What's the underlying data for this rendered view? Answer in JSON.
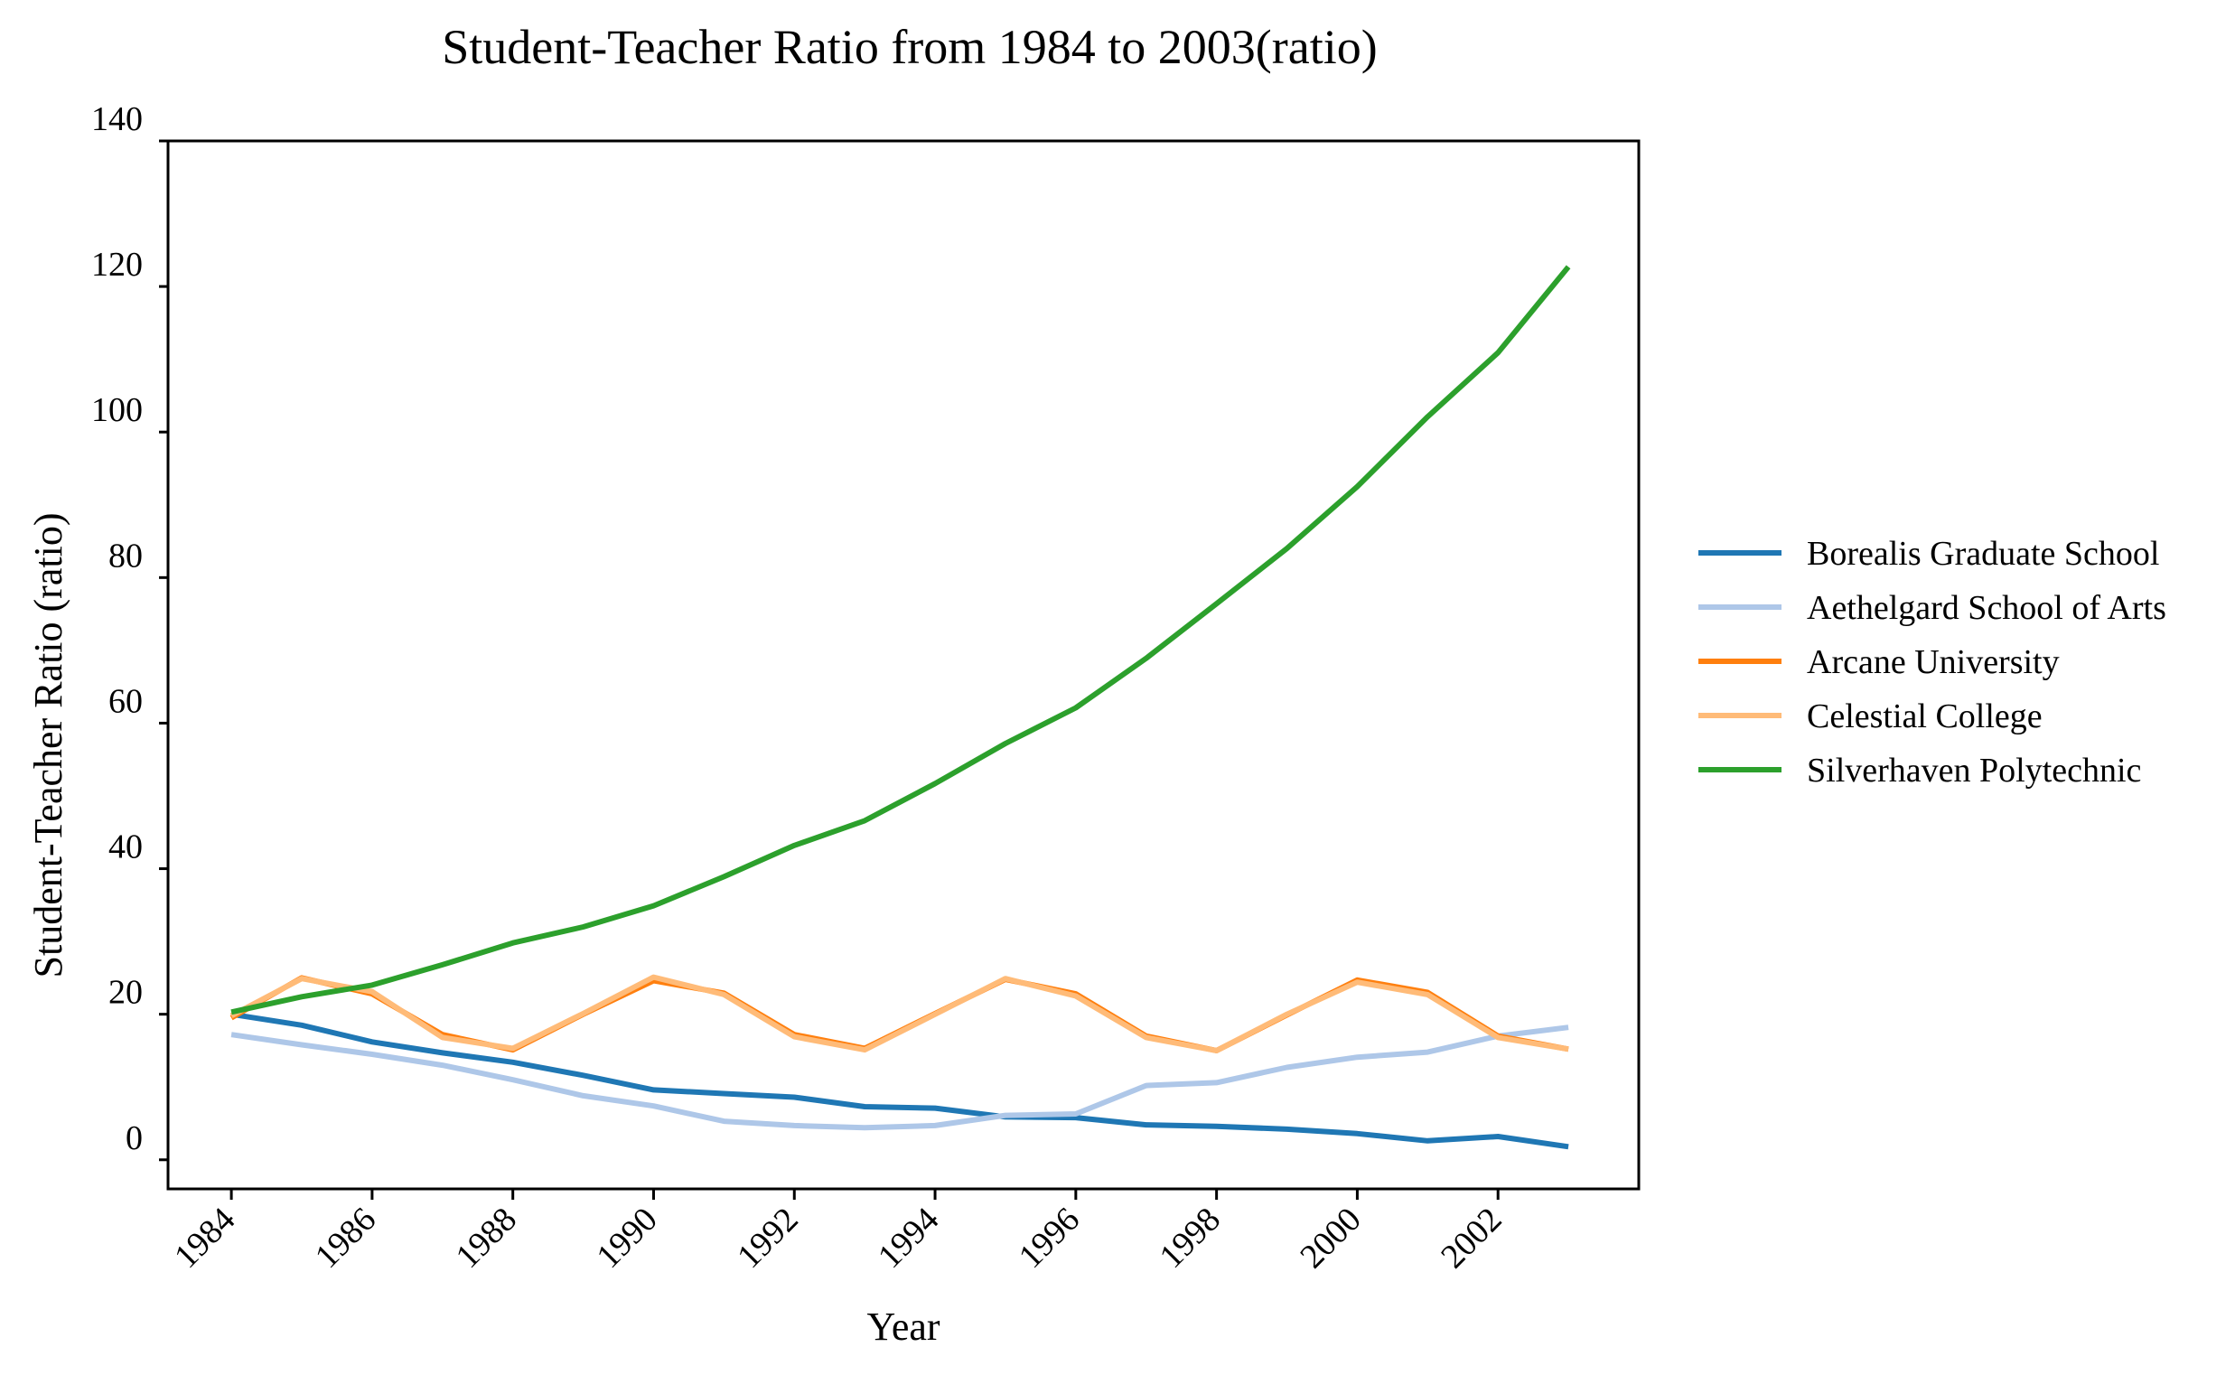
{
  "chart_data": {
    "type": "line",
    "title": "Student-Teacher Ratio from 1984 to 2003(ratio)",
    "xlabel": "Year",
    "ylabel": "Student-Teacher Ratio (ratio)",
    "xlim": [
      1983.1,
      2004.0
    ],
    "ylim": [
      -4,
      140
    ],
    "x": [
      1984,
      1985,
      1986,
      1987,
      1988,
      1989,
      1990,
      1991,
      1992,
      1993,
      1994,
      1995,
      1996,
      1997,
      1998,
      1999,
      2000,
      2001,
      2002,
      2003
    ],
    "x_ticks": [
      "1984",
      "1986",
      "1988",
      "1990",
      "1992",
      "1994",
      "1996",
      "1998",
      "2000",
      "2002"
    ],
    "y_ticks": [
      "0",
      "20",
      "40",
      "60",
      "80",
      "100",
      "120",
      "140"
    ],
    "grid": false,
    "legend_position": "right",
    "series": [
      {
        "name": "Borealis Graduate School",
        "color": "#1f77b4",
        "values": [
          20.0,
          18.5,
          16.2,
          14.7,
          13.4,
          11.6,
          9.6,
          9.1,
          8.6,
          7.3,
          7.1,
          5.9,
          5.8,
          4.8,
          4.6,
          4.2,
          3.6,
          2.6,
          3.2,
          1.8
        ]
      },
      {
        "name": "Aethelgard School of Arts",
        "color": "#aec7e8",
        "values": [
          17.2,
          15.8,
          14.5,
          13.0,
          11.0,
          8.8,
          7.4,
          5.3,
          4.7,
          4.4,
          4.7,
          6.1,
          6.3,
          10.2,
          10.6,
          12.7,
          14.1,
          14.8,
          17.0,
          18.2
        ]
      },
      {
        "name": "Arcane University",
        "color": "#ff7f0e",
        "values": [
          19.5,
          25.0,
          22.8,
          17.2,
          15.1,
          20.0,
          24.6,
          22.9,
          17.2,
          15.3,
          20.1,
          24.8,
          22.8,
          17.0,
          15.0,
          19.9,
          24.7,
          23.0,
          17.0,
          15.2
        ]
      },
      {
        "name": "Celestial College",
        "color": "#ffbb78",
        "values": [
          19.8,
          24.9,
          23.1,
          16.8,
          15.3,
          20.1,
          25.1,
          22.7,
          16.9,
          15.1,
          20.0,
          24.9,
          22.5,
          16.8,
          15.0,
          20.0,
          24.4,
          22.7,
          16.8,
          15.2
        ]
      },
      {
        "name": "Silverhaven Polytechnic",
        "color": "#2ca02c",
        "values": [
          20.3,
          22.4,
          24.0,
          26.8,
          29.8,
          32.0,
          34.9,
          38.9,
          43.2,
          46.6,
          51.7,
          57.2,
          62.1,
          68.9,
          76.4,
          84.0,
          92.5,
          102.1,
          110.9,
          122.7
        ]
      }
    ]
  }
}
